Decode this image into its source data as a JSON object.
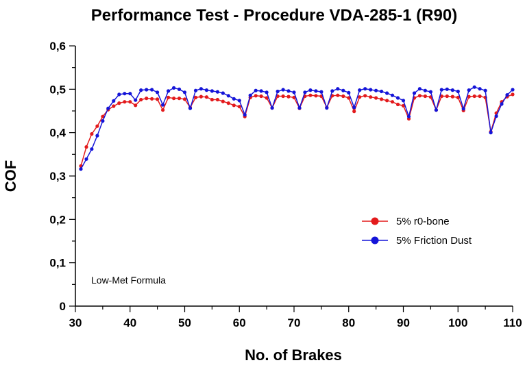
{
  "chart_data": {
    "type": "line",
    "title": "Performance Test - Procedure VDA-285-1 (R90)",
    "xlabel": "No. of Brakes",
    "ylabel": "COF",
    "xlim": [
      30,
      110
    ],
    "ylim": [
      0,
      0.6
    ],
    "x_ticks": [
      "30",
      "40",
      "50",
      "60",
      "70",
      "80",
      "90",
      "100",
      "110"
    ],
    "y_ticks": [
      "0",
      "0,1",
      "0,2",
      "0,3",
      "0,4",
      "0,5",
      "0,6"
    ],
    "grid": false,
    "legend_position": "right",
    "annotation": "Low-Met Formula",
    "x": [
      31,
      32,
      33,
      34,
      35,
      36,
      37,
      38,
      39,
      40,
      41,
      42,
      43,
      44,
      45,
      46,
      47,
      48,
      49,
      50,
      51,
      52,
      53,
      54,
      55,
      56,
      57,
      58,
      59,
      60,
      61,
      62,
      63,
      64,
      65,
      66,
      67,
      68,
      69,
      70,
      71,
      72,
      73,
      74,
      75,
      76,
      77,
      78,
      79,
      80,
      81,
      82,
      83,
      84,
      85,
      86,
      87,
      88,
      89,
      90,
      91,
      92,
      93,
      94,
      95,
      96,
      97,
      98,
      99,
      100,
      101,
      102,
      103,
      104,
      105,
      106,
      107,
      108,
      109,
      110
    ],
    "series": [
      {
        "name": "5% r0-bone",
        "color": "#e31a1c",
        "values": [
          0.323,
          0.367,
          0.397,
          0.415,
          0.437,
          0.453,
          0.461,
          0.468,
          0.471,
          0.471,
          0.463,
          0.476,
          0.479,
          0.478,
          0.477,
          0.452,
          0.481,
          0.479,
          0.479,
          0.477,
          0.458,
          0.481,
          0.483,
          0.482,
          0.476,
          0.476,
          0.472,
          0.468,
          0.463,
          0.46,
          0.437,
          0.481,
          0.485,
          0.484,
          0.48,
          0.457,
          0.484,
          0.484,
          0.483,
          0.481,
          0.456,
          0.484,
          0.486,
          0.485,
          0.484,
          0.458,
          0.485,
          0.486,
          0.484,
          0.48,
          0.449,
          0.482,
          0.485,
          0.482,
          0.48,
          0.477,
          0.474,
          0.471,
          0.465,
          0.462,
          0.432,
          0.48,
          0.485,
          0.484,
          0.482,
          0.452,
          0.484,
          0.484,
          0.483,
          0.481,
          0.451,
          0.483,
          0.484,
          0.484,
          0.481,
          0.402,
          0.445,
          0.471,
          0.483,
          0.488
        ]
      },
      {
        "name": "5% Friction Dust",
        "color": "#1414d8",
        "values": [
          0.316,
          0.339,
          0.362,
          0.393,
          0.427,
          0.456,
          0.473,
          0.488,
          0.49,
          0.49,
          0.475,
          0.498,
          0.499,
          0.499,
          0.493,
          0.464,
          0.496,
          0.503,
          0.5,
          0.493,
          0.456,
          0.497,
          0.501,
          0.498,
          0.496,
          0.494,
          0.491,
          0.485,
          0.478,
          0.474,
          0.441,
          0.486,
          0.497,
          0.496,
          0.493,
          0.457,
          0.495,
          0.499,
          0.496,
          0.493,
          0.457,
          0.493,
          0.498,
          0.496,
          0.494,
          0.457,
          0.496,
          0.501,
          0.497,
          0.492,
          0.458,
          0.498,
          0.501,
          0.499,
          0.497,
          0.495,
          0.491,
          0.486,
          0.48,
          0.474,
          0.437,
          0.491,
          0.501,
          0.497,
          0.494,
          0.452,
          0.499,
          0.5,
          0.498,
          0.495,
          0.455,
          0.498,
          0.505,
          0.501,
          0.497,
          0.4,
          0.438,
          0.466,
          0.487,
          0.499
        ]
      }
    ]
  }
}
